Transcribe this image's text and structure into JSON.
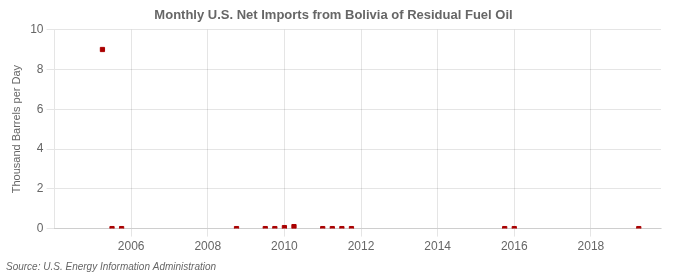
{
  "chart_data": {
    "type": "scatter",
    "title": "Monthly U.S. Net Imports from Bolivia of Residual Fuel Oil",
    "y_label": "Thousand Barrels per Day",
    "annotation": "Source: U.S. Energy Information Administration",
    "x": [
      2005.25,
      2005.5,
      2005.75,
      2008.75,
      2009.5,
      2009.75,
      2010.0,
      2010.25,
      2011.0,
      2011.25,
      2011.5,
      2011.75,
      2015.75,
      2016.0,
      2019.25
    ],
    "values": [
      9.0,
      0.0,
      0.0,
      0.0,
      0.0,
      0.0,
      0.05,
      0.1,
      0.0,
      0.0,
      0.0,
      0.0,
      0.0,
      0.0,
      0.0
    ],
    "color": "#aa0000",
    "marker": "square",
    "xlim": [
      2004.0,
      2019.83
    ],
    "ylim": [
      0,
      10
    ],
    "xticks": [
      2006,
      2008,
      2010,
      2012,
      2014,
      2016,
      2018
    ],
    "yticks": [
      0,
      2,
      4,
      6,
      8,
      10
    ],
    "grid": true
  }
}
